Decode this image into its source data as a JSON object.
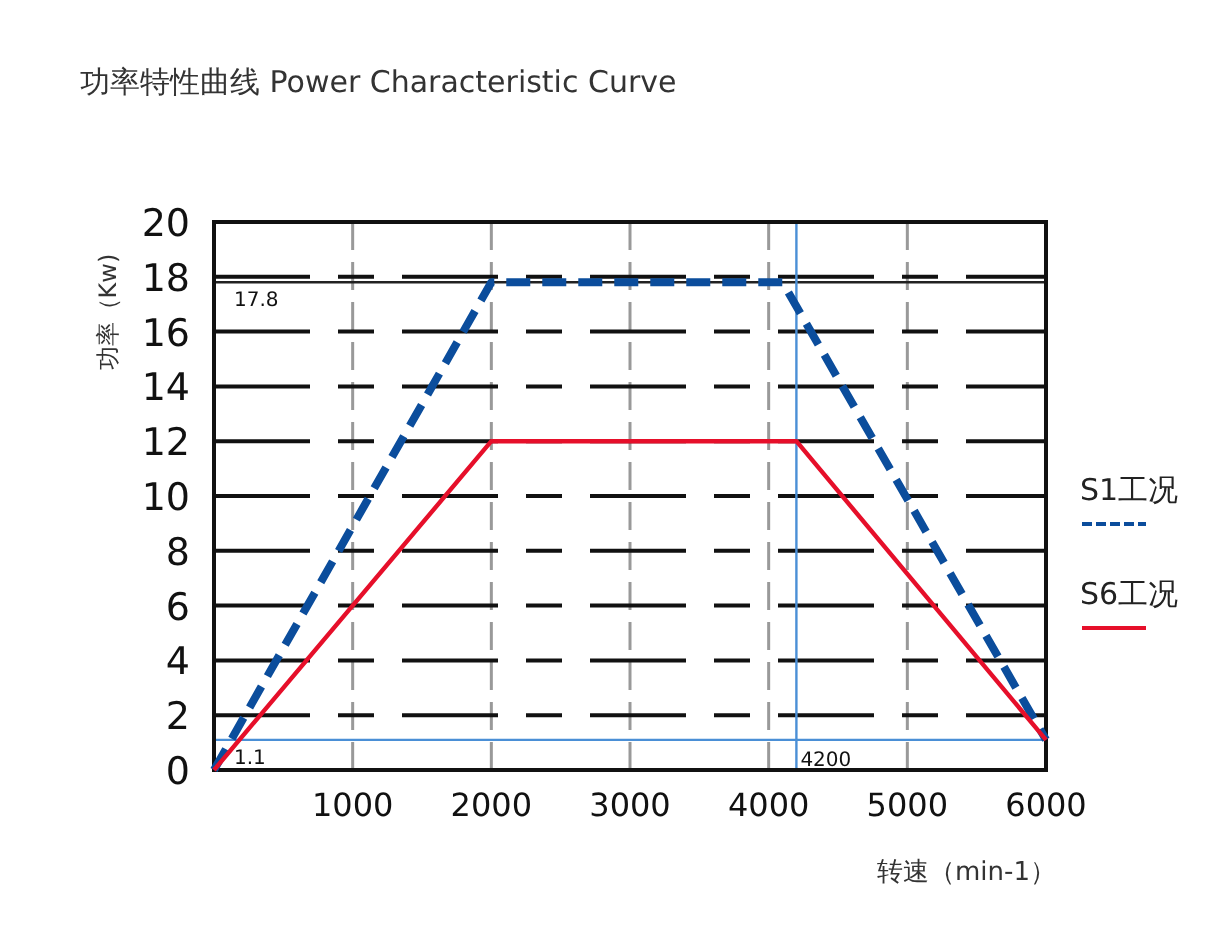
{
  "chart_data": {
    "type": "line",
    "title": "功率特性曲线  Power Characteristic Curve",
    "xlabel": "转速（min-1）",
    "ylabel": "功率（Kw)",
    "xlim": [
      0,
      6000
    ],
    "xticks": [
      1000,
      2000,
      3000,
      4000,
      5000,
      6000
    ],
    "ylim": [
      0,
      20
    ],
    "yticks": [
      0,
      2,
      4,
      6,
      8,
      10,
      12,
      14,
      16,
      18,
      20
    ],
    "grid": true,
    "legend": "right",
    "marker": "none",
    "series": [
      {
        "name": "S1工况",
        "color": "#0b4d9c",
        "line_style": "dashed",
        "x": [
          0,
          2000,
          4100,
          6000
        ],
        "values": [
          0,
          17.8,
          17.8,
          1.1
        ]
      },
      {
        "name": "S6工况",
        "color": "#e60f2a",
        "line_style": "solid",
        "x": [
          0,
          2000,
          4200,
          6000
        ],
        "values": [
          0,
          12,
          12,
          1.1
        ]
      }
    ],
    "ref_lines": [
      {
        "axis": "y",
        "value": 17.8,
        "label": "17.8",
        "color": "#222222"
      },
      {
        "axis": "y",
        "value": 1.1,
        "label": "1.1",
        "color": "#4a8fd6"
      },
      {
        "axis": "x",
        "value": 4200,
        "label": "4200",
        "color": "#4a8fd6"
      }
    ]
  }
}
